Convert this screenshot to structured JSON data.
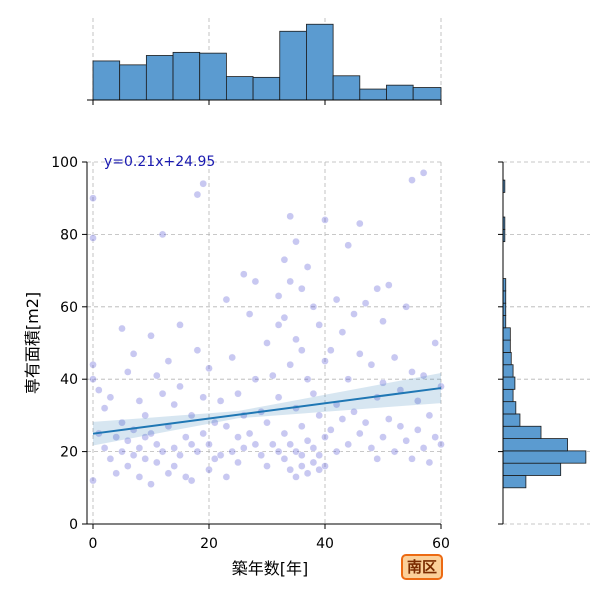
{
  "badge": {
    "label": "南区"
  },
  "chart_data": {
    "type": "scatter",
    "xlabel": "築年数[年]",
    "ylabel": "専有面積[m2]",
    "xlim": [
      0,
      60
    ],
    "ylim": [
      0,
      100
    ],
    "x_ticks": [
      "0",
      "20",
      "40",
      "60"
    ],
    "y_ticks": [
      "0",
      "20",
      "40",
      "60",
      "80",
      "100"
    ],
    "grid": true,
    "regression": {
      "equation": "y=0.21x+24.95",
      "slope": 0.21,
      "intercept": 24.95
    },
    "point_color": "#3a3acc",
    "line_color": "#1f77b4",
    "hist_color": "#5b9bd0",
    "x_hist": {
      "bin_edges": [
        0,
        4.6,
        9.2,
        13.8,
        18.4,
        23,
        27.6,
        32.2,
        36.8,
        41.4,
        46,
        50.6,
        55.2,
        60
      ],
      "counts": [
        50,
        45,
        57,
        61,
        60,
        30,
        29,
        88,
        97,
        31,
        14,
        19,
        16
      ]
    },
    "y_hist": {
      "bin_edges": [
        10,
        13.4,
        16.8,
        20.2,
        23.6,
        27,
        30.4,
        33.8,
        37.2,
        40.6,
        44,
        47.4,
        50.8,
        54.2,
        57.6,
        61,
        64.4,
        67.8,
        71.2,
        74.6,
        78,
        81.4,
        84.8,
        88.2,
        91.6,
        95
      ],
      "counts": [
        50,
        126,
        181,
        141,
        83,
        37,
        28,
        22,
        26,
        22,
        18,
        16,
        16,
        6,
        6,
        6,
        6,
        0,
        0,
        0,
        4,
        4,
        0,
        0,
        4
      ]
    },
    "points": [
      [
        0,
        90
      ],
      [
        0,
        79
      ],
      [
        0,
        44
      ],
      [
        0,
        40
      ],
      [
        0,
        12
      ],
      [
        1,
        37
      ],
      [
        1,
        25
      ],
      [
        2,
        21
      ],
      [
        2,
        32
      ],
      [
        3,
        35
      ],
      [
        3,
        18
      ],
      [
        4,
        24
      ],
      [
        4,
        14
      ],
      [
        5,
        54
      ],
      [
        5,
        28
      ],
      [
        5,
        20
      ],
      [
        6,
        42
      ],
      [
        6,
        23
      ],
      [
        6,
        16
      ],
      [
        7,
        47
      ],
      [
        7,
        26
      ],
      [
        7,
        19
      ],
      [
        8,
        34
      ],
      [
        8,
        21
      ],
      [
        8,
        13
      ],
      [
        9,
        30
      ],
      [
        9,
        24
      ],
      [
        9,
        18
      ],
      [
        10,
        52
      ],
      [
        10,
        25
      ],
      [
        10,
        11
      ],
      [
        11,
        41
      ],
      [
        11,
        22
      ],
      [
        11,
        17
      ],
      [
        12,
        80
      ],
      [
        12,
        36
      ],
      [
        12,
        20
      ],
      [
        13,
        45
      ],
      [
        13,
        27
      ],
      [
        13,
        14
      ],
      [
        14,
        33
      ],
      [
        14,
        21
      ],
      [
        14,
        16
      ],
      [
        15,
        55
      ],
      [
        15,
        38
      ],
      [
        15,
        19
      ],
      [
        16,
        24
      ],
      [
        16,
        13
      ],
      [
        17,
        30
      ],
      [
        17,
        22
      ],
      [
        17,
        12
      ],
      [
        18,
        91
      ],
      [
        18,
        48
      ],
      [
        18,
        20
      ],
      [
        19,
        94
      ],
      [
        19,
        35
      ],
      [
        19,
        25
      ],
      [
        20,
        43
      ],
      [
        20,
        22
      ],
      [
        20,
        15
      ],
      [
        21,
        28
      ],
      [
        21,
        18
      ],
      [
        22,
        34
      ],
      [
        22,
        19
      ],
      [
        23,
        62
      ],
      [
        23,
        27
      ],
      [
        23,
        13
      ],
      [
        24,
        46
      ],
      [
        24,
        20
      ],
      [
        25,
        36
      ],
      [
        25,
        24
      ],
      [
        25,
        17
      ],
      [
        26,
        69
      ],
      [
        26,
        30
      ],
      [
        26,
        21
      ],
      [
        27,
        58
      ],
      [
        27,
        25
      ],
      [
        28,
        67
      ],
      [
        28,
        40
      ],
      [
        28,
        22
      ],
      [
        29,
        31
      ],
      [
        29,
        19
      ],
      [
        30,
        50
      ],
      [
        30,
        28
      ],
      [
        30,
        16
      ],
      [
        31,
        41
      ],
      [
        31,
        22
      ],
      [
        32,
        63
      ],
      [
        32,
        55
      ],
      [
        32,
        35
      ],
      [
        32,
        20
      ],
      [
        33,
        73
      ],
      [
        33,
        57
      ],
      [
        33,
        25
      ],
      [
        33,
        18
      ],
      [
        34,
        85
      ],
      [
        34,
        67
      ],
      [
        34,
        44
      ],
      [
        34,
        22
      ],
      [
        34,
        15
      ],
      [
        35,
        78
      ],
      [
        35,
        51
      ],
      [
        35,
        32
      ],
      [
        35,
        20
      ],
      [
        35,
        13
      ],
      [
        36,
        65
      ],
      [
        36,
        48
      ],
      [
        36,
        27
      ],
      [
        36,
        19
      ],
      [
        36,
        16
      ],
      [
        37,
        71
      ],
      [
        37,
        40
      ],
      [
        37,
        23
      ],
      [
        37,
        14
      ],
      [
        38,
        60
      ],
      [
        38,
        36
      ],
      [
        38,
        21
      ],
      [
        38,
        17
      ],
      [
        39,
        55
      ],
      [
        39,
        30
      ],
      [
        39,
        19
      ],
      [
        39,
        15
      ],
      [
        40,
        84
      ],
      [
        40,
        45
      ],
      [
        40,
        24
      ],
      [
        40,
        16
      ],
      [
        41,
        48
      ],
      [
        41,
        26
      ],
      [
        42,
        62
      ],
      [
        42,
        33
      ],
      [
        42,
        20
      ],
      [
        43,
        53
      ],
      [
        43,
        29
      ],
      [
        44,
        77
      ],
      [
        44,
        40
      ],
      [
        44,
        22
      ],
      [
        45,
        58
      ],
      [
        45,
        31
      ],
      [
        46,
        83
      ],
      [
        46,
        47
      ],
      [
        46,
        25
      ],
      [
        47,
        61
      ],
      [
        47,
        28
      ],
      [
        48,
        44
      ],
      [
        48,
        21
      ],
      [
        49,
        65
      ],
      [
        49,
        35
      ],
      [
        49,
        18
      ],
      [
        50,
        56
      ],
      [
        50,
        39
      ],
      [
        50,
        24
      ],
      [
        51,
        66
      ],
      [
        51,
        29
      ],
      [
        52,
        46
      ],
      [
        52,
        20
      ],
      [
        53,
        37
      ],
      [
        53,
        27
      ],
      [
        54,
        60
      ],
      [
        54,
        23
      ],
      [
        55,
        95
      ],
      [
        55,
        42
      ],
      [
        55,
        18
      ],
      [
        56,
        34
      ],
      [
        56,
        26
      ],
      [
        57,
        97
      ],
      [
        57,
        41
      ],
      [
        57,
        21
      ],
      [
        58,
        30
      ],
      [
        58,
        17
      ],
      [
        59,
        50
      ],
      [
        59,
        24
      ],
      [
        60,
        38
      ],
      [
        60,
        22
      ]
    ]
  }
}
